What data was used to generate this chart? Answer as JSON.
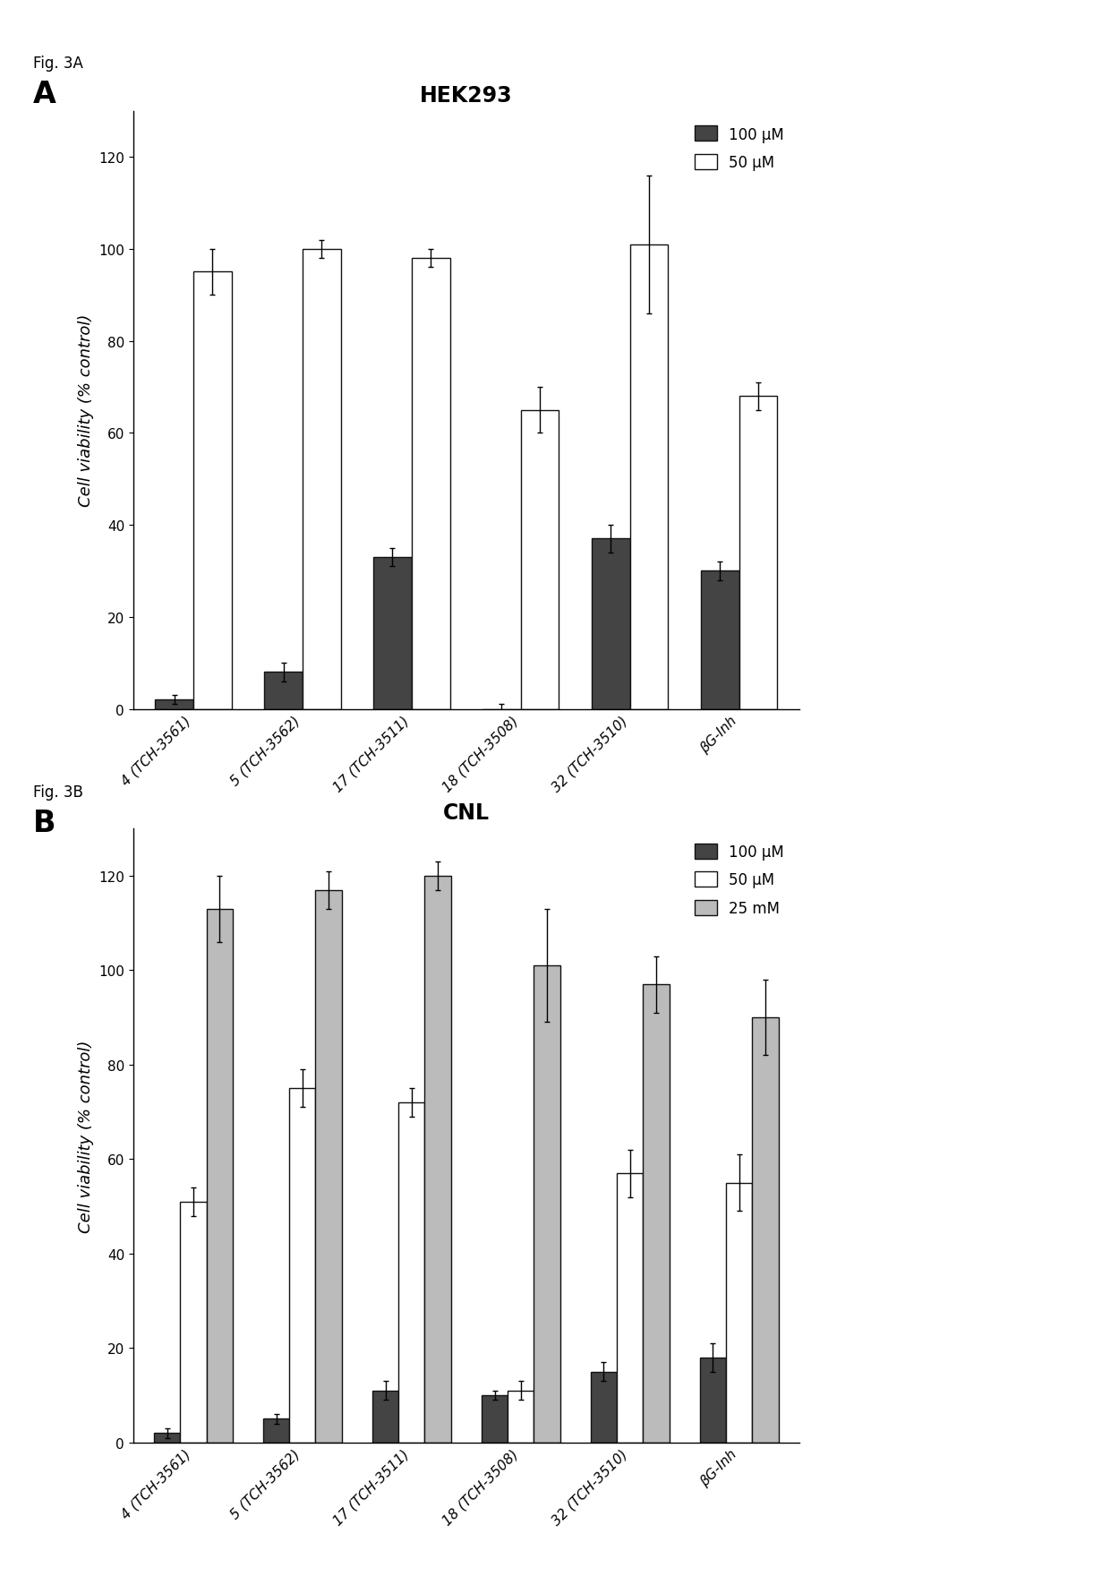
{
  "fig_A": {
    "title": "HEK293",
    "fig_label": "Fig. 3A",
    "panel_label": "A",
    "categories": [
      "4 (TCH-3561)",
      "5 (TCH-3562)",
      "17 (TCH-3511)",
      "18 (TCH-3508)",
      "32 (TCH-3510)",
      "βG-Inh"
    ],
    "series": [
      {
        "label": "100 μM",
        "values": [
          2,
          8,
          33,
          0,
          37,
          30
        ],
        "errors": [
          1,
          2,
          2,
          1,
          3,
          2
        ],
        "color": "#444444",
        "edgecolor": "#111111"
      },
      {
        "label": "50 μM",
        "values": [
          95,
          100,
          98,
          65,
          101,
          68
        ],
        "errors": [
          5,
          2,
          2,
          5,
          15,
          3
        ],
        "color": "#ffffff",
        "edgecolor": "#111111"
      }
    ],
    "ylabel": "Cell viability (% control)",
    "ylim": [
      0,
      130
    ],
    "yticks": [
      0,
      20,
      40,
      60,
      80,
      100,
      120
    ]
  },
  "fig_B": {
    "title": "CNL",
    "fig_label": "Fig. 3B",
    "panel_label": "B",
    "categories": [
      "4 (TCH-3561)",
      "5 (TCH-3562)",
      "17 (TCH-3511)",
      "18 (TCH-3508)",
      "32 (TCH-3510)",
      "βG-Inh"
    ],
    "series": [
      {
        "label": "100 μM",
        "values": [
          2,
          5,
          11,
          10,
          15,
          18
        ],
        "errors": [
          1,
          1,
          2,
          1,
          2,
          3
        ],
        "color": "#444444",
        "edgecolor": "#111111"
      },
      {
        "label": "50 μM",
        "values": [
          51,
          75,
          72,
          11,
          57,
          55
        ],
        "errors": [
          3,
          4,
          3,
          2,
          5,
          6
        ],
        "color": "#ffffff",
        "edgecolor": "#111111"
      },
      {
        "label": "25 mM",
        "values": [
          113,
          117,
          120,
          101,
          97,
          90
        ],
        "errors": [
          7,
          4,
          3,
          12,
          6,
          8
        ],
        "color": "#bbbbbb",
        "edgecolor": "#111111"
      }
    ],
    "ylabel": "Cell viability (% control)",
    "ylim": [
      0,
      130
    ],
    "yticks": [
      0,
      20,
      40,
      60,
      80,
      100,
      120
    ]
  },
  "fig_width": 12.4,
  "fig_height": 17.81,
  "background_color": "#ffffff",
  "fontsize_title": 17,
  "fontsize_label": 13,
  "fontsize_tick": 11,
  "fontsize_legend": 12,
  "fontsize_fig_label": 12,
  "fontsize_panel_label": 24
}
